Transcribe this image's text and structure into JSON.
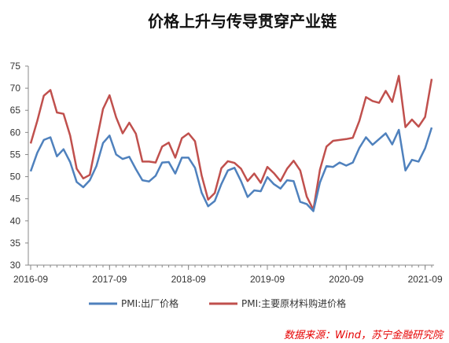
{
  "chart_data": {
    "type": "line",
    "title": "价格上升与传导贯穿产业链",
    "source": "数据来源：Wind，苏宁金融研究院",
    "xlabel": "",
    "ylabel": "",
    "ylim": [
      30,
      75
    ],
    "yticks": [
      30,
      35,
      40,
      45,
      50,
      55,
      60,
      65,
      70,
      75
    ],
    "xtick_labels": [
      "2016-09",
      "2017-09",
      "2018-09",
      "2019-09",
      "2020-09",
      "2021-09"
    ],
    "grid": false,
    "legend_position": "bottom",
    "x": [
      "2016-09",
      "2016-10",
      "2016-11",
      "2016-12",
      "2017-01",
      "2017-02",
      "2017-03",
      "2017-04",
      "2017-05",
      "2017-06",
      "2017-07",
      "2017-08",
      "2017-09",
      "2017-10",
      "2017-11",
      "2017-12",
      "2018-01",
      "2018-02",
      "2018-03",
      "2018-04",
      "2018-05",
      "2018-06",
      "2018-07",
      "2018-08",
      "2018-09",
      "2018-10",
      "2018-11",
      "2018-12",
      "2019-01",
      "2019-02",
      "2019-03",
      "2019-04",
      "2019-05",
      "2019-06",
      "2019-07",
      "2019-08",
      "2019-09",
      "2019-10",
      "2019-11",
      "2019-12",
      "2020-01",
      "2020-02",
      "2020-03",
      "2020-04",
      "2020-05",
      "2020-06",
      "2020-07",
      "2020-08",
      "2020-09",
      "2020-10",
      "2020-11",
      "2020-12",
      "2021-01",
      "2021-02",
      "2021-03",
      "2021-04",
      "2021-05",
      "2021-06",
      "2021-07",
      "2021-08",
      "2021-09",
      "2021-10"
    ],
    "series": [
      {
        "name": "PMI:出厂价格",
        "color": "#4f81bd",
        "values": [
          51.2,
          55.4,
          58.3,
          58.9,
          54.6,
          56.2,
          53.3,
          48.8,
          47.6,
          49.2,
          52.4,
          57.6,
          59.3,
          55.0,
          54.0,
          54.5,
          51.7,
          49.2,
          48.9,
          50.2,
          53.2,
          53.3,
          50.7,
          54.3,
          54.3,
          52.0,
          46.4,
          43.3,
          44.5,
          48.3,
          51.4,
          52.0,
          49.0,
          45.4,
          46.9,
          46.7,
          49.9,
          48.3,
          47.3,
          49.2,
          49.0,
          44.3,
          43.8,
          42.2,
          48.7,
          52.4,
          52.2,
          53.2,
          52.5,
          53.2,
          56.5,
          58.9,
          57.2,
          58.5,
          59.8,
          57.3,
          60.6,
          51.4,
          53.8,
          53.4,
          56.4,
          61.1
        ]
      },
      {
        "name": "PMI:主要原材料购进价格",
        "color": "#c0504d",
        "values": [
          57.5,
          62.6,
          68.3,
          69.6,
          64.5,
          64.2,
          59.3,
          51.8,
          49.6,
          50.4,
          57.9,
          65.3,
          68.4,
          63.4,
          59.8,
          62.2,
          59.7,
          53.4,
          53.4,
          53.2,
          56.8,
          57.7,
          54.3,
          58.7,
          59.8,
          58.0,
          50.3,
          44.8,
          46.3,
          51.9,
          53.5,
          53.1,
          51.8,
          49.0,
          50.7,
          48.6,
          52.2,
          50.8,
          49.0,
          51.8,
          53.6,
          51.4,
          45.5,
          42.5,
          51.6,
          56.8,
          58.1,
          58.3,
          58.5,
          58.8,
          62.6,
          68.0,
          67.1,
          66.7,
          69.4,
          66.9,
          72.8,
          61.2,
          62.9,
          61.3,
          63.5,
          72.1
        ]
      }
    ]
  }
}
